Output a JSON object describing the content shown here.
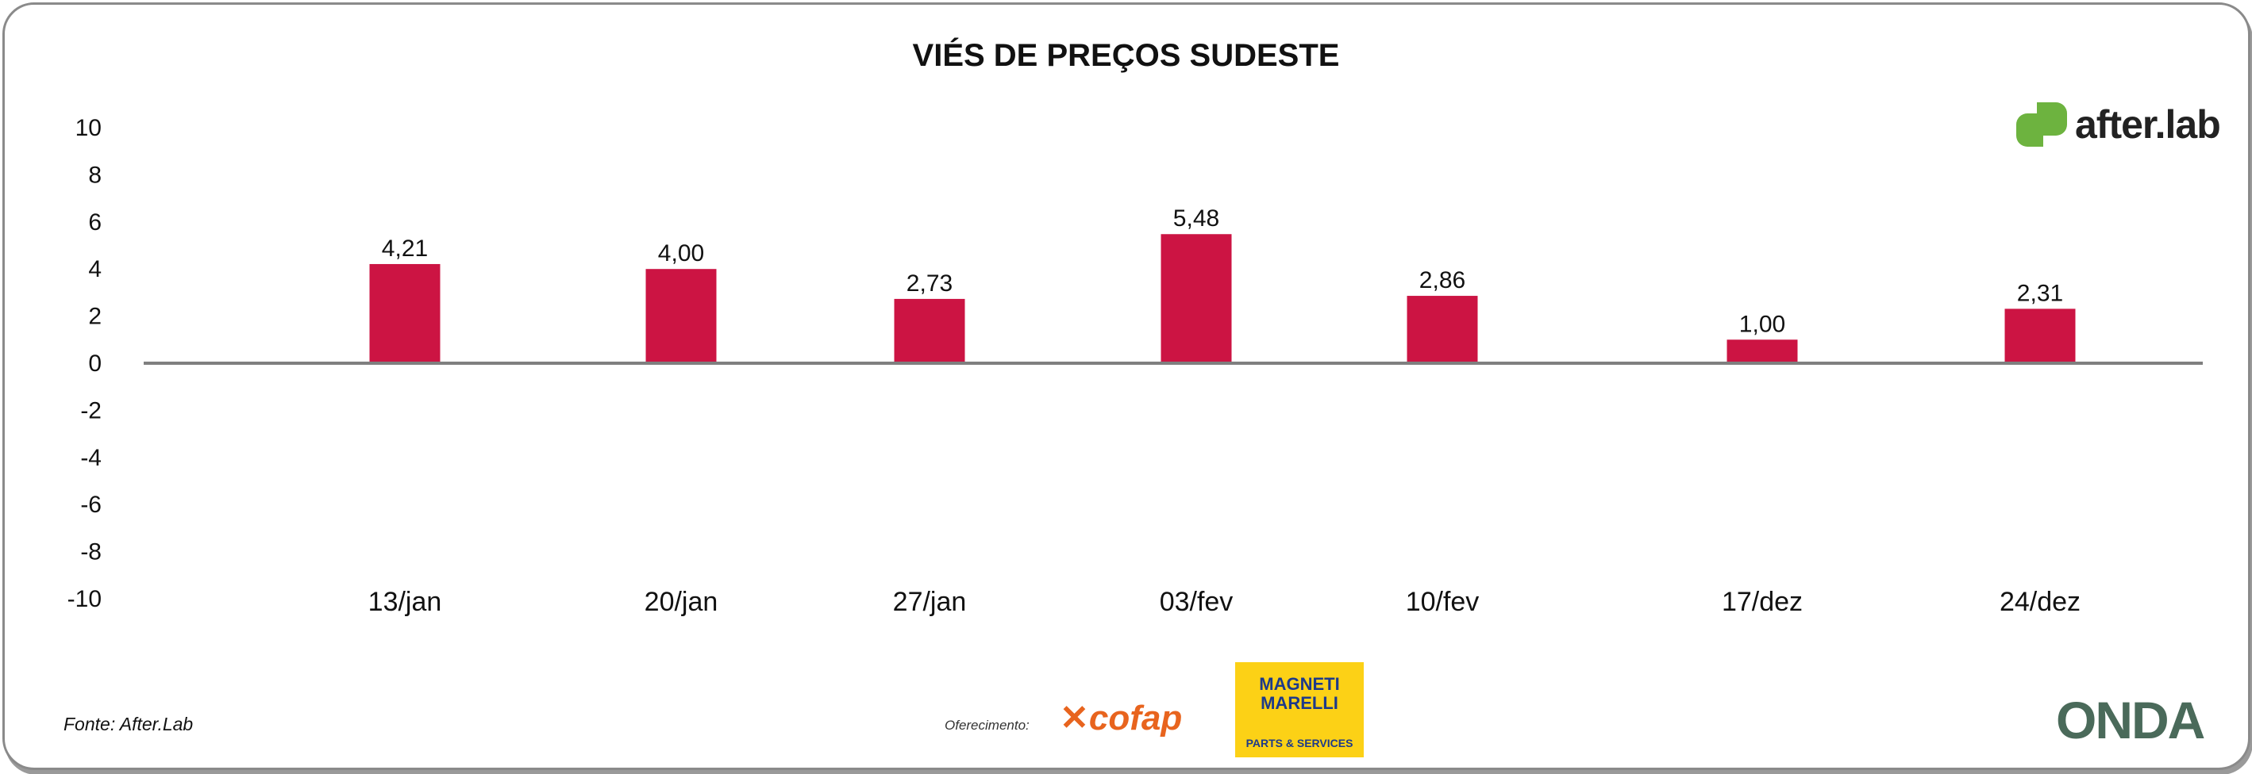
{
  "chart_data": {
    "type": "bar",
    "title": "VIÉS DE PREÇOS SUDESTE",
    "categories": [
      "13/jan",
      "20/jan",
      "27/jan",
      "03/fev",
      "10/fev",
      "17/dez",
      "24/dez"
    ],
    "values": [
      4.21,
      4.0,
      2.73,
      5.48,
      2.86,
      1.0,
      2.31
    ],
    "data_labels": [
      "4,21",
      "4,00",
      "2,73",
      "5,48",
      "2,86",
      "1,00",
      "2,31"
    ],
    "ylim": [
      -10,
      10
    ],
    "yticks": [
      "10",
      "8",
      "6",
      "4",
      "2",
      "0",
      "-2",
      "-4",
      "-6",
      "-8",
      "-10"
    ],
    "xlabel": "",
    "ylabel": "",
    "grid": false,
    "bar_color": "#cc1443"
  },
  "logo": {
    "text": "after.lab"
  },
  "footer": {
    "source": "Fonte: After.Lab",
    "sponsor_label": "Oferecimento:",
    "sponsor1": "cofap",
    "sponsor2_line1": "MAGNETI MARELLI",
    "sponsor2_line2": "PARTS & SERVICES",
    "partner": "ONDA"
  }
}
